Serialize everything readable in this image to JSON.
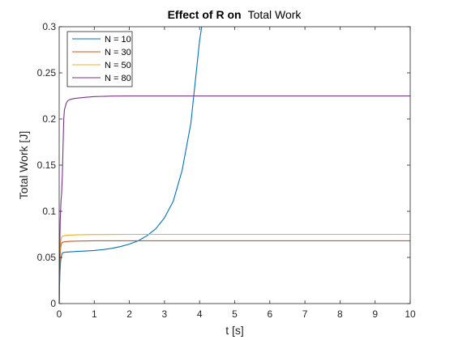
{
  "chart_data": {
    "type": "line",
    "title_bold": "Effect of R on",
    "title_rest": "Total Work",
    "xlabel": "t [s]",
    "ylabel": "Total Work [J]",
    "xlim": [
      0,
      10
    ],
    "ylim": [
      0,
      0.3
    ],
    "xticks": [
      0,
      1,
      2,
      3,
      4,
      5,
      6,
      7,
      8,
      9,
      10
    ],
    "yticks": [
      0,
      0.05,
      0.1,
      0.15,
      0.2,
      0.25,
      0.3
    ],
    "xtick_labels": [
      "0",
      "1",
      "2",
      "3",
      "4",
      "5",
      "6",
      "7",
      "8",
      "9",
      "10"
    ],
    "ytick_labels": [
      "0",
      "0.05",
      "0.1",
      "0.15",
      "0.2",
      "0.25",
      "0.3"
    ],
    "grid": false,
    "legend_position": "top-left",
    "series": [
      {
        "name": "N = 10",
        "color": "#0072BD",
        "x": [
          0,
          0.01,
          0.02,
          0.04,
          0.06,
          0.08,
          0.1,
          0.15,
          0.2,
          0.3,
          0.5,
          0.75,
          1.0,
          1.25,
          1.5,
          1.75,
          2.0,
          2.25,
          2.5,
          2.75,
          3.0,
          3.25,
          3.5,
          3.75,
          4.0,
          4.06
        ],
        "y": [
          0,
          0.018,
          0.032,
          0.045,
          0.051,
          0.054,
          0.055,
          0.0555,
          0.0558,
          0.056,
          0.0565,
          0.057,
          0.0575,
          0.0585,
          0.0598,
          0.0618,
          0.0645,
          0.068,
          0.0735,
          0.081,
          0.093,
          0.111,
          0.144,
          0.195,
          0.285,
          0.3
        ]
      },
      {
        "name": "N = 30",
        "color": "#D95319",
        "x": [
          0,
          0.01,
          0.02,
          0.04,
          0.06,
          0.08,
          0.1,
          0.15,
          0.2,
          0.3,
          0.5,
          1.0,
          2.0,
          4.0,
          6.0,
          8.0,
          10.0
        ],
        "y": [
          0,
          0.025,
          0.045,
          0.06,
          0.064,
          0.066,
          0.0665,
          0.067,
          0.0672,
          0.0675,
          0.0677,
          0.068,
          0.068,
          0.068,
          0.068,
          0.068,
          0.068
        ]
      },
      {
        "name": "N = 50",
        "color": "#EDB120",
        "x": [
          0,
          0.01,
          0.02,
          0.04,
          0.06,
          0.08,
          0.1,
          0.15,
          0.2,
          0.3,
          0.5,
          1.0,
          2.0,
          4.0,
          6.0,
          8.0,
          10.0
        ],
        "y": [
          0,
          0.03,
          0.05,
          0.066,
          0.071,
          0.0725,
          0.073,
          0.0735,
          0.074,
          0.0742,
          0.0745,
          0.0748,
          0.075,
          0.075,
          0.075,
          0.075,
          0.075
        ]
      },
      {
        "name": "N = 80",
        "color": "#7E2F8E",
        "x": [
          0,
          0.01,
          0.02,
          0.03,
          0.05,
          0.07,
          0.09,
          0.11,
          0.13,
          0.15,
          0.2,
          0.25,
          0.3,
          0.4,
          0.5,
          0.75,
          1.0,
          1.5,
          2.0,
          3.0,
          5.0,
          7.0,
          10.0
        ],
        "y": [
          0,
          0.04,
          0.07,
          0.09,
          0.11,
          0.12,
          0.14,
          0.17,
          0.2,
          0.21,
          0.217,
          0.22,
          0.221,
          0.222,
          0.2225,
          0.2235,
          0.2243,
          0.2248,
          0.225,
          0.225,
          0.225,
          0.225,
          0.225
        ]
      }
    ]
  }
}
